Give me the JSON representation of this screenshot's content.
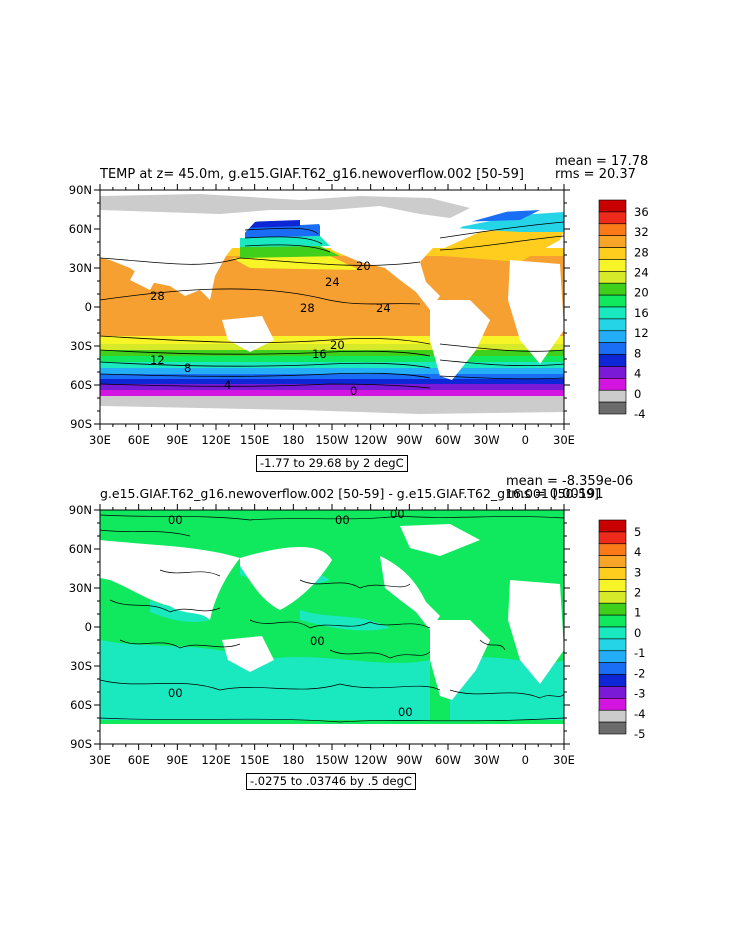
{
  "panels": [
    {
      "id": "top",
      "title": "TEMP at z=  45.0m, g.e15.GIAF.T62_g16.newoverflow.002 [50-59]",
      "mean": "mean = 17.78",
      "rms": "rms = 20.37",
      "range_note": "-1.77 to 29.68 by 2 degC",
      "lat_labels": [
        "90N",
        "60N",
        "30N",
        "0",
        "30S",
        "60S",
        "90S"
      ],
      "lon_labels": [
        "30E",
        "60E",
        "90E",
        "120E",
        "150E",
        "180",
        "150W",
        "120W",
        "90W",
        "60W",
        "30W",
        "0",
        "30E"
      ],
      "colorbar": {
        "labels": [
          "36",
          "32",
          "28",
          "24",
          "20",
          "16",
          "12",
          "8",
          "4",
          "0",
          "-4"
        ],
        "colors": [
          "#c80000",
          "#ee2a1d",
          "#fa7a1a",
          "#f9a628",
          "#ffcd1e",
          "#f7f528",
          "#d6ea2a",
          "#40d01c",
          "#10e85e",
          "#1ae9c0",
          "#26d4e8",
          "#23aef7",
          "#1a6ef5",
          "#0d26d6",
          "#7a1ad6",
          "#d414e0",
          "#cccccc",
          "#6b6b6b"
        ]
      },
      "contour_labels": [
        "28",
        "24",
        "20",
        "16",
        "12",
        "8",
        "4",
        "0",
        "24",
        "28",
        "20",
        "16",
        "12",
        "8",
        "4",
        "0"
      ]
    },
    {
      "id": "bottom",
      "title": "g.e15.GIAF.T62_g16.newoverflow.002 [50-59] - g.e15.GIAF.T62_g16.001 [50-59]",
      "mean": "mean = -8.359e-06",
      "rms": "rms = 0.00191",
      "range_note": "-.0275 to .03746 by .5 degC",
      "lat_labels": [
        "90N",
        "60N",
        "30N",
        "0",
        "30S",
        "60S",
        "90S"
      ],
      "lon_labels": [
        "30E",
        "60E",
        "90E",
        "120E",
        "150E",
        "180",
        "150W",
        "120W",
        "90W",
        "60W",
        "30W",
        "0",
        "30E"
      ],
      "colorbar": {
        "labels": [
          "5",
          "4",
          "3",
          "2",
          "1",
          "0",
          "-1",
          "-2",
          "-3",
          "-4",
          "-5"
        ],
        "colors": [
          "#c80000",
          "#ee2a1d",
          "#fa7a1a",
          "#f9a628",
          "#ffcd1e",
          "#f7f528",
          "#d6ea2a",
          "#40d01c",
          "#10e85e",
          "#1ae9c0",
          "#26d4e8",
          "#23aef7",
          "#1a6ef5",
          "#0d26d6",
          "#7a1ad6",
          "#d414e0",
          "#cccccc",
          "#6b6b6b"
        ]
      },
      "contour_labels": [
        "00",
        "00",
        "00",
        "00",
        "00",
        "00"
      ]
    }
  ]
}
